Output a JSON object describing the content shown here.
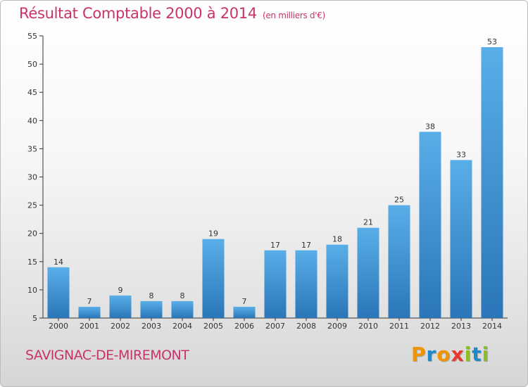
{
  "header": {
    "title": "Résultat Comptable 2000 à 2014",
    "subtitle": "(en milliers d'€)"
  },
  "footer": {
    "commune": "SAVIGNAC-DE-MIREMONT",
    "brand_letters": [
      "P",
      "r",
      "o",
      "x",
      "i",
      "t",
      "i"
    ],
    "brand_colors": [
      "#f29400",
      "#1e88c9",
      "#f29400",
      "#e63a2e",
      "#8cbf26",
      "#1e88c9",
      "#8cbf26"
    ]
  },
  "colors": {
    "title": "#c8336b",
    "bar_top": "#5aaee8",
    "bar_bottom": "#2a76b8"
  },
  "chart_data": {
    "type": "bar",
    "title": "Résultat Comptable 2000 à 2014",
    "xlabel": "",
    "ylabel": "",
    "categories": [
      "2000",
      "2001",
      "2002",
      "2003",
      "2004",
      "2005",
      "2006",
      "2007",
      "2008",
      "2009",
      "2010",
      "2011",
      "2012",
      "2013",
      "2014"
    ],
    "values": [
      14,
      7,
      9,
      8,
      8,
      19,
      7,
      17,
      17,
      18,
      21,
      25,
      38,
      33,
      53
    ],
    "ylim": [
      5,
      55
    ],
    "yticks": [
      5,
      10,
      15,
      20,
      25,
      30,
      35,
      40,
      45,
      50,
      55
    ],
    "grid": false,
    "legend": "none"
  }
}
